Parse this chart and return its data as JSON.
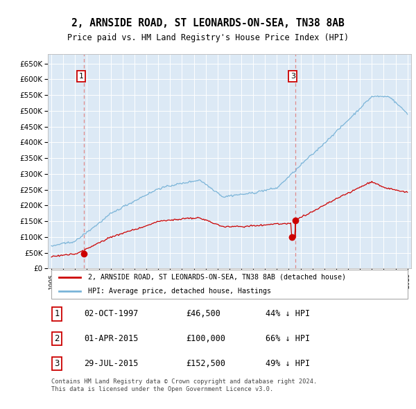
{
  "title": "2, ARNSIDE ROAD, ST LEONARDS-ON-SEA, TN38 8AB",
  "subtitle": "Price paid vs. HM Land Registry's House Price Index (HPI)",
  "background_color": "#dce9f5",
  "plot_bg_color": "#dce9f5",
  "ylim": [
    0,
    680000
  ],
  "yticks": [
    0,
    50000,
    100000,
    150000,
    200000,
    250000,
    300000,
    350000,
    400000,
    450000,
    500000,
    550000,
    600000,
    650000
  ],
  "hpi_color": "#7ab4d8",
  "price_color": "#cc0000",
  "sale_marker_color": "#cc0000",
  "vline_color": "#e08080",
  "grid_color": "#ffffff",
  "legend_label_price": "2, ARNSIDE ROAD, ST LEONARDS-ON-SEA, TN38 8AB (detached house)",
  "legend_label_hpi": "HPI: Average price, detached house, Hastings",
  "sales": [
    {
      "num": 1,
      "date_label": "02-OCT-1997",
      "price": 46500,
      "pct": "44%",
      "direction": "↓"
    },
    {
      "num": 2,
      "date_label": "01-APR-2015",
      "price": 100000,
      "pct": "66%",
      "direction": "↓"
    },
    {
      "num": 3,
      "date_label": "29-JUL-2015",
      "price": 152500,
      "pct": "49%",
      "direction": "↓"
    }
  ],
  "footer": "Contains HM Land Registry data © Crown copyright and database right 2024.\nThis data is licensed under the Open Government Licence v3.0.",
  "x_start_year": 1995,
  "x_end_year": 2025,
  "sale1_year": 1997.75,
  "sale2_year": 2015.25,
  "sale3_year": 2015.583
}
